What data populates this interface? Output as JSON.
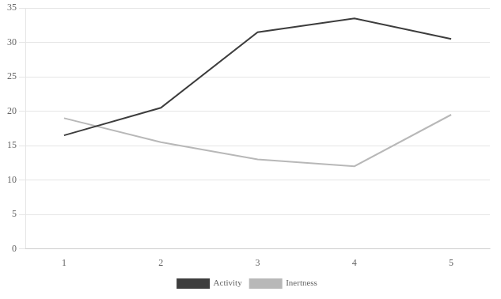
{
  "chart_data": {
    "type": "line",
    "x": [
      1,
      2,
      3,
      4,
      5
    ],
    "series": [
      {
        "name": "Activity",
        "color": "#3d3d3d",
        "values": [
          16.5,
          20.5,
          31.5,
          33.5,
          30.5
        ]
      },
      {
        "name": "Inertness",
        "color": "#b8b8b8",
        "values": [
          19.0,
          15.5,
          13.0,
          12.0,
          19.5
        ]
      }
    ],
    "xlim": [
      0.6,
      5.4
    ],
    "xticks": [
      1,
      2,
      3,
      4,
      5
    ],
    "ylim": [
      0,
      35
    ],
    "yticks": [
      0,
      5,
      10,
      15,
      20,
      25,
      30,
      35
    ],
    "grid": "y",
    "legend": "bottom"
  }
}
